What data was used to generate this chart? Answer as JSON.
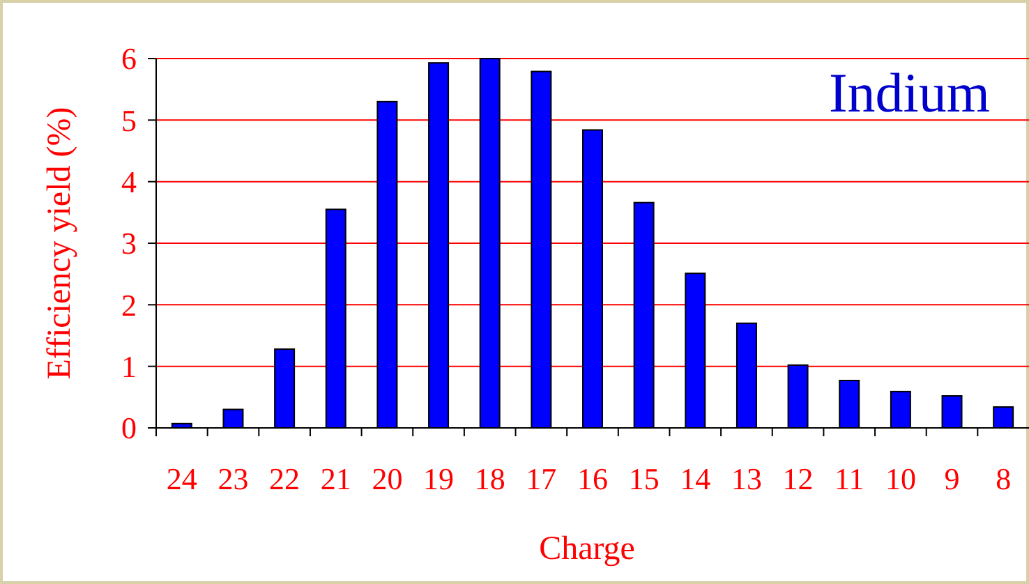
{
  "chart_data": {
    "type": "bar",
    "title": "Indium",
    "xlabel": "Charge",
    "ylabel": "Efficiency yield (%)",
    "categories": [
      "24",
      "23",
      "22",
      "21",
      "20",
      "19",
      "18",
      "17",
      "16",
      "15",
      "14",
      "13",
      "12",
      "11",
      "10",
      "9",
      "8"
    ],
    "values": [
      0.07,
      0.3,
      1.28,
      3.55,
      5.3,
      5.93,
      6,
      5.79,
      4.84,
      3.66,
      2.51,
      1.7,
      1.02,
      0.77,
      0.59,
      0.52,
      0.34
    ],
    "color": "#0000ff",
    "ylim": [
      0,
      6
    ],
    "yticks": [
      0,
      1,
      2,
      3,
      4,
      5,
      6
    ],
    "grid": "y"
  }
}
